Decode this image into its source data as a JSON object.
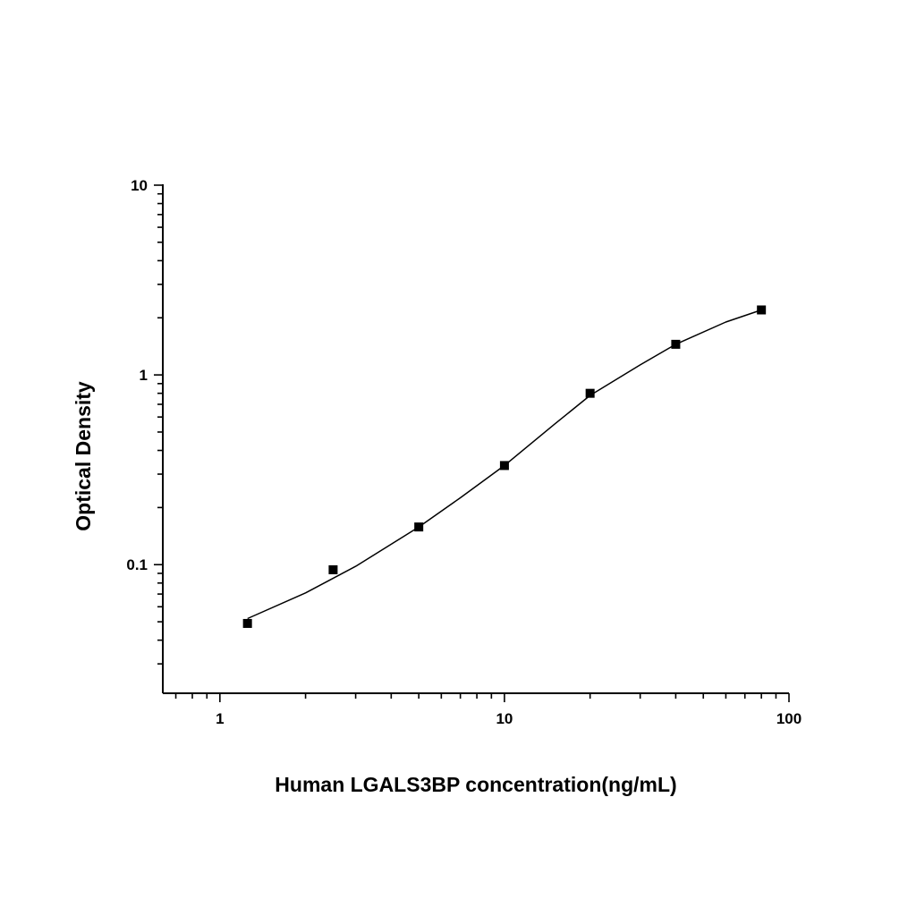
{
  "chart_data": {
    "type": "scatter",
    "x_scale": "log",
    "y_scale": "log",
    "xlabel": "Human LGALS3BP concentration(ng/mL)",
    "ylabel": "Optical Density",
    "xlim": [
      0.63,
      100
    ],
    "ylim": [
      0.021,
      10
    ],
    "x_ticks": [
      1,
      10,
      100
    ],
    "x_tick_labels": [
      "1",
      "10",
      "100"
    ],
    "y_ticks": [
      10,
      1,
      0.1
    ],
    "y_tick_labels": [
      "10",
      "1",
      "0.1"
    ],
    "grid": false,
    "marker_color": "#000000",
    "line_color": "#000000",
    "series": [
      {
        "marker": "square",
        "x": [
          1.25,
          2.5,
          5,
          10,
          20,
          40,
          80
        ],
        "y": [
          0.049,
          0.094,
          0.158,
          0.333,
          0.8,
          1.45,
          2.2
        ]
      }
    ],
    "fit_curve": {
      "x": [
        1.25,
        2,
        3,
        5,
        7,
        10,
        15,
        20,
        30,
        40,
        60,
        80
      ],
      "y": [
        0.052,
        0.071,
        0.098,
        0.158,
        0.225,
        0.333,
        0.55,
        0.78,
        1.13,
        1.45,
        1.9,
        2.2
      ]
    }
  }
}
